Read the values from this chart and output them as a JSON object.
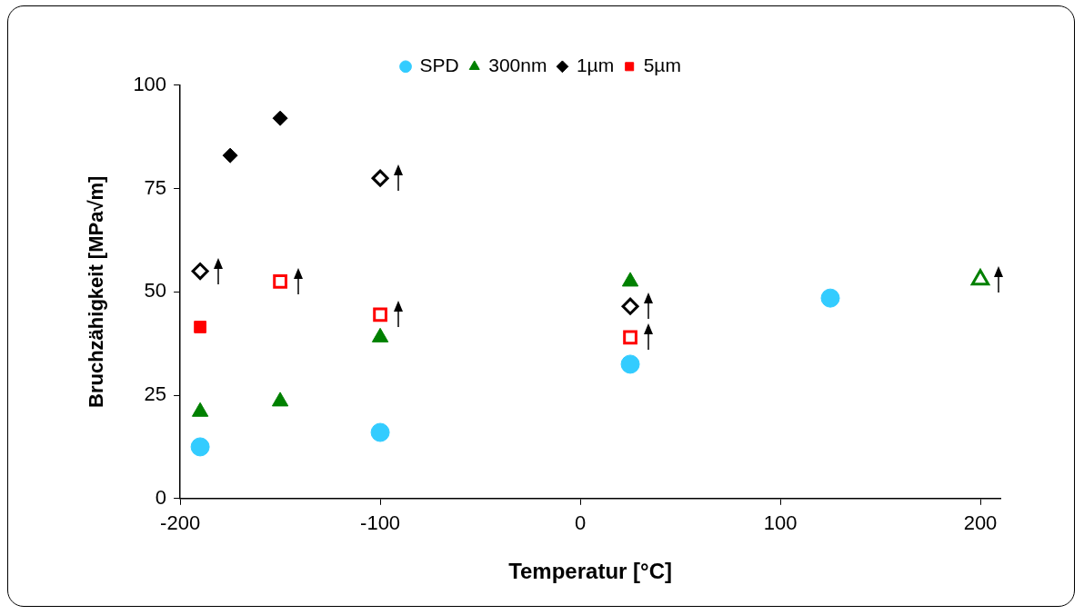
{
  "chart_data": {
    "type": "scatter",
    "xlabel": "Temperatur [°C]",
    "ylabel": "Bruchzähigkeit [MPa√m]",
    "xlim": [
      -200,
      210
    ],
    "xticks": [
      -200,
      -100,
      0,
      100,
      200
    ],
    "ylim": [
      0,
      100
    ],
    "yticks": [
      0,
      25,
      50,
      75,
      100
    ],
    "grid": false,
    "legend": "top",
    "series": [
      {
        "name": "SPD",
        "color": "#33ccff",
        "marker": "circle",
        "x": [
          -190,
          -100,
          25,
          125
        ],
        "values": [
          12.5,
          16,
          32.5,
          48.5
        ]
      },
      {
        "name": "300nm",
        "color": "#008000",
        "marker": "triangle",
        "x": [
          -190,
          -150,
          -100,
          25
        ],
        "values": [
          21,
          23.5,
          39,
          52.5
        ]
      },
      {
        "name": "1µm",
        "color": "#000000",
        "marker": "diamond",
        "x": [
          -175,
          -150
        ],
        "values": [
          83,
          92
        ]
      },
      {
        "name": "5µm",
        "color": "#ff0000",
        "marker": "square",
        "x": [
          -190
        ],
        "values": [
          41.5
        ]
      },
      {
        "color": "#008000",
        "marker": "triangle",
        "x": [
          200
        ],
        "values": [
          53
        ]
      },
      {
        "color": "#000000",
        "marker": "diamond",
        "x": [
          -190,
          -100,
          25
        ],
        "values": [
          55,
          77.5,
          46.5
        ]
      },
      {
        "color": "#ff0000",
        "marker": "square",
        "x": [
          -150,
          -100,
          25
        ],
        "values": [
          52.5,
          44.5,
          39
        ]
      }
    ]
  }
}
